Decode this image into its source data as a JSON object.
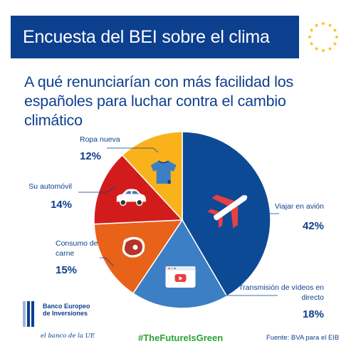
{
  "header": {
    "title": "Encuesta del BEI sobre el clima"
  },
  "headline": "A qué renunciarían con más facilidad los españoles para luchar contra el cambio climático",
  "chart_data": {
    "type": "pie",
    "title": "A qué renunciarían con más facilidad los españoles para luchar contra el cambio climático",
    "slices": [
      {
        "label": "Viajar en avión",
        "value": 42,
        "display": "42%",
        "color": "#0d4a96",
        "icon": "airplane-icon"
      },
      {
        "label": "Transmisión de vídeos en directo",
        "value": 18,
        "display": "18%",
        "color": "#3d7fc4",
        "icon": "video-streaming-icon"
      },
      {
        "label": "Consumo de carne",
        "value": 15,
        "display": "15%",
        "color": "#e8621a",
        "icon": "steak-icon"
      },
      {
        "label": "Su automóvil",
        "value": 14,
        "display": "14%",
        "color": "#d21c1c",
        "icon": "car-icon"
      },
      {
        "label": "Ropa nueva",
        "value": 12,
        "display": "12%",
        "color": "#f9b21b",
        "icon": "tshirt-icon"
      }
    ]
  },
  "footer": {
    "logo_name": "Banco Europeo de Inversiones",
    "logo_tagline": "el banco de la UE",
    "hashtag": "#TheFutureIsGreen",
    "source": "Fuente: BVA para el EIB"
  },
  "colors": {
    "brand_blue": "#0d3f8f",
    "hashtag_green": "#2aa336"
  }
}
